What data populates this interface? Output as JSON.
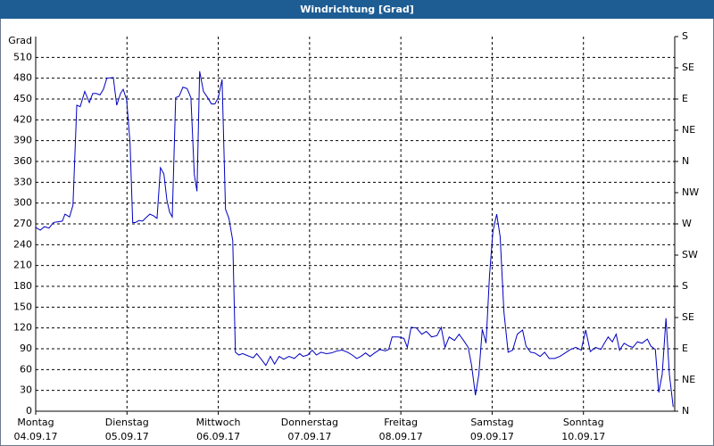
{
  "chart_data": {
    "type": "line",
    "title": "Windrichtung [Grad]",
    "ylabel": "Grad",
    "color": "#0000c0",
    "grid": true,
    "xlim": [
      0,
      168
    ],
    "xticks": [
      {
        "value": 0,
        "label": "Montag",
        "date": "04.09.17"
      },
      {
        "value": 24,
        "label": "Dienstag",
        "date": "05.09.17"
      },
      {
        "value": 48,
        "label": "Mittwoch",
        "date": "06.09.17"
      },
      {
        "value": 72,
        "label": "Donnerstag",
        "date": "07.09.17"
      },
      {
        "value": 96,
        "label": "Freitag",
        "date": "08.09.17"
      },
      {
        "value": 120,
        "label": "Samstag",
        "date": "09.09.17"
      },
      {
        "value": 144,
        "label": "Sonntag",
        "date": "10.09.17"
      }
    ],
    "ylim": [
      0,
      540
    ],
    "yticks": [
      0,
      30,
      60,
      90,
      120,
      150,
      180,
      210,
      240,
      270,
      300,
      330,
      360,
      390,
      420,
      450,
      480,
      510
    ],
    "y2lim": [
      0,
      540
    ],
    "y2ticks": [
      {
        "value": 0,
        "label": "N"
      },
      {
        "value": 45,
        "label": "NE"
      },
      {
        "value": 90,
        "label": "E"
      },
      {
        "value": 135,
        "label": "SE"
      },
      {
        "value": 180,
        "label": "S"
      },
      {
        "value": 225,
        "label": "SW"
      },
      {
        "value": 270,
        "label": "W"
      },
      {
        "value": 315,
        "label": "NW"
      },
      {
        "value": 360,
        "label": "N"
      },
      {
        "value": 405,
        "label": "NE"
      },
      {
        "value": 450,
        "label": "E"
      },
      {
        "value": 495,
        "label": "SE"
      },
      {
        "value": 540,
        "label": "S"
      }
    ],
    "x": [
      0,
      1.2,
      2.3,
      3.5,
      4.7,
      5.9,
      7,
      7.7,
      8.9,
      9.8,
      10.8,
      11.7,
      12.9,
      14.1,
      15,
      15.9,
      16.9,
      17.8,
      18.7,
      20.4,
      21.3,
      22.3,
      23,
      23.9,
      24.8,
      25.5,
      26.2,
      27.2,
      28.1,
      29,
      30,
      30.9,
      31.9,
      32.8,
      33.7,
      34.5,
      35.2,
      35.9,
      36.8,
      37.7,
      38.7,
      39.8,
      40.8,
      41.7,
      42.4,
      43.1,
      44.1,
      45.2,
      46.2,
      47.1,
      48,
      49,
      49.9,
      50.8,
      51.8,
      52.5,
      53.4,
      54.4,
      55.3,
      56.2,
      57.2,
      58.1,
      59.3,
      60.5,
      61.7,
      62.8,
      64,
      65.2,
      66.6,
      68,
      69.4,
      70.3,
      71.5,
      72.7,
      73.8,
      75,
      76.4,
      77.8,
      79.2,
      80.6,
      82,
      83.2,
      84.4,
      85.5,
      86.7,
      87.9,
      89.1,
      90.5,
      91.9,
      92.8,
      93.7,
      95.4,
      96.8,
      97.7,
      98.7,
      100.1,
      101.5,
      102.7,
      104.1,
      105.5,
      106.6,
      107.6,
      108.7,
      110.1,
      111.3,
      112.5,
      113.7,
      114.6,
      115.6,
      116.5,
      117.4,
      118.4,
      119.3,
      120.2,
      121.2,
      122.1,
      123.1,
      124.2,
      125.4,
      126.6,
      128,
      128.9,
      130.1,
      131.2,
      132.6,
      133.8,
      135,
      136.4,
      137.8,
      139.2,
      140.6,
      142,
      143.4,
      144.6,
      145.8,
      147.2,
      148.6,
      149.5,
      150.5,
      151.6,
      152.6,
      153.5,
      154.7,
      155.9,
      157,
      158.2,
      159.4,
      160.8,
      161.7,
      162.9,
      163.8,
      164.7,
      165.7,
      166.6,
      167.6
    ],
    "values": [
      265,
      261,
      266,
      264,
      272,
      273,
      274,
      284,
      280,
      297,
      441,
      439,
      461,
      445,
      458,
      458,
      456,
      464,
      480,
      481,
      441,
      458,
      464,
      449,
      387,
      272,
      272,
      275,
      274,
      279,
      284,
      282,
      278,
      351,
      342,
      304,
      287,
      280,
      452,
      454,
      467,
      465,
      452,
      341,
      317,
      490,
      461,
      452,
      443,
      443,
      452,
      478,
      291,
      278,
      246,
      85,
      81,
      83,
      81,
      79,
      77,
      83,
      75,
      66,
      79,
      68,
      79,
      75,
      79,
      76,
      83,
      79,
      81,
      88,
      81,
      85,
      83,
      84,
      87,
      88,
      85,
      81,
      76,
      79,
      84,
      79,
      84,
      89,
      87,
      89,
      107,
      107,
      105,
      92,
      121,
      120,
      111,
      115,
      107,
      109,
      121,
      92,
      107,
      102,
      111,
      102,
      92,
      66,
      23,
      53,
      118,
      98,
      195,
      259,
      284,
      252,
      143,
      85,
      88,
      111,
      117,
      94,
      85,
      84,
      79,
      85,
      76,
      76,
      79,
      84,
      89,
      92,
      88,
      117,
      86,
      92,
      89,
      98,
      107,
      100,
      111,
      88,
      98,
      94,
      92,
      100,
      98,
      104,
      94,
      89,
      27,
      53,
      134,
      53,
      6
    ]
  }
}
